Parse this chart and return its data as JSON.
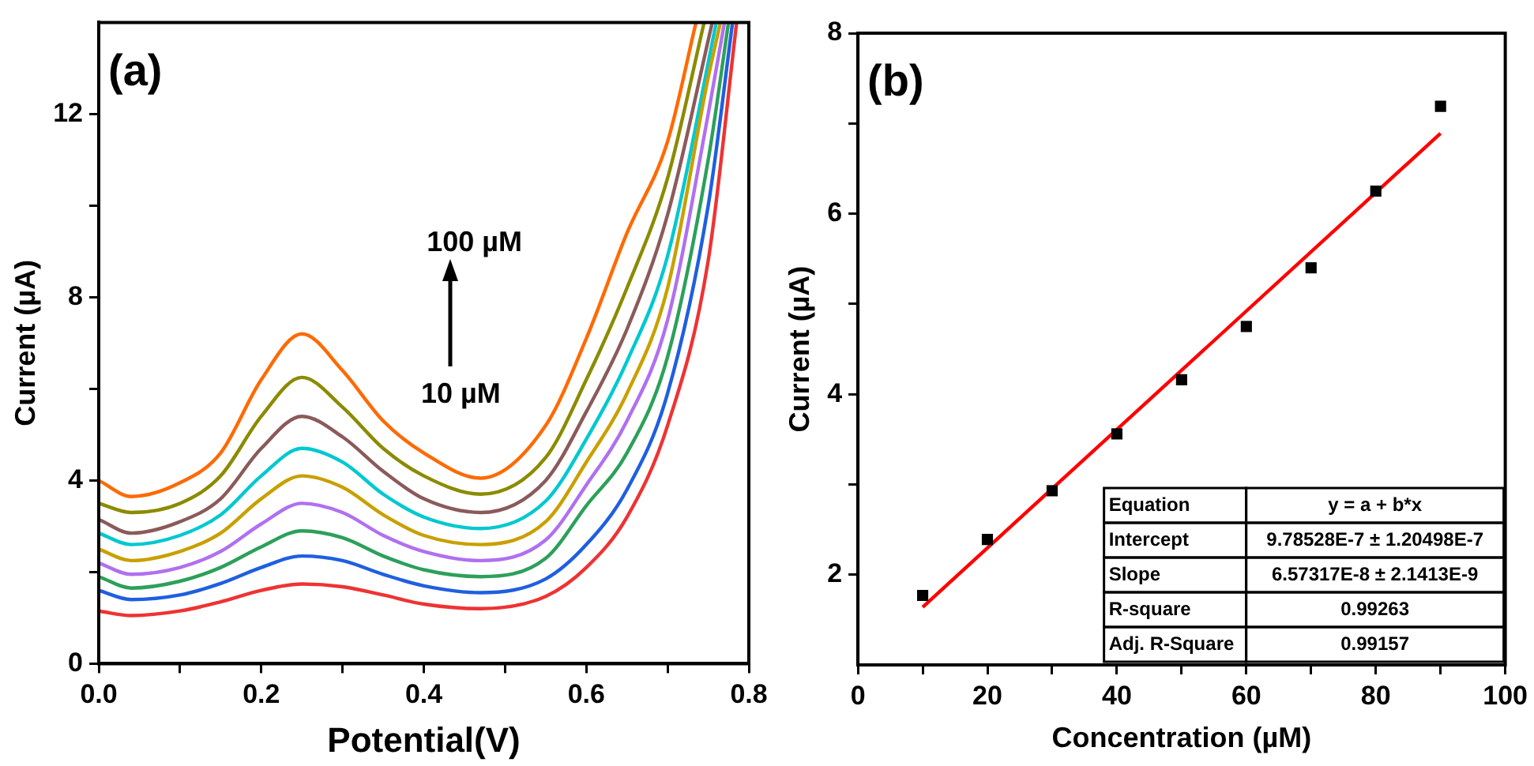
{
  "chart_data": [
    {
      "type": "line",
      "xlabel": "Potential(V)",
      "ylabel": "Current (µA)",
      "xlim": [
        0,
        0.8
      ],
      "ylim": [
        0,
        14
      ],
      "xticks": [
        {
          "value": 0,
          "label": "0.0"
        },
        {
          "value": 0.1,
          "label": null
        },
        {
          "value": 0.2,
          "label": "0.2"
        },
        {
          "value": 0.3,
          "label": null
        },
        {
          "value": 0.4,
          "label": "0.4"
        },
        {
          "value": 0.5,
          "label": null
        },
        {
          "value": 0.6,
          "label": "0.6"
        },
        {
          "value": 0.7,
          "label": null
        },
        {
          "value": 0.8,
          "label": "0.8"
        }
      ],
      "yticks": [
        0,
        {
          "value": 2,
          "label": null
        },
        4,
        {
          "value": 6,
          "label": null
        },
        8,
        {
          "value": 10,
          "label": null
        },
        12
      ],
      "legend": false,
      "annotations": [
        "(a)",
        "100 µM",
        "10 µM"
      ],
      "series": [
        {
          "color": "#ee3333",
          "x": [
            0,
            0.04,
            0.1,
            0.15,
            0.2,
            0.25,
            0.3,
            0.35,
            0.4,
            0.47,
            0.55,
            0.6,
            0.65,
            0.7,
            0.75,
            0.785
          ],
          "values": [
            1.15,
            1.05,
            1.15,
            1.35,
            1.6,
            1.74,
            1.68,
            1.5,
            1.3,
            1.2,
            1.47,
            2.1,
            3.2,
            5.2,
            8.8,
            14
          ]
        },
        {
          "color": "#1f5fe0",
          "x": [
            0,
            0.04,
            0.1,
            0.15,
            0.2,
            0.25,
            0.3,
            0.35,
            0.4,
            0.47,
            0.55,
            0.6,
            0.65,
            0.7,
            0.75,
            0.78
          ],
          "values": [
            1.6,
            1.4,
            1.5,
            1.75,
            2.1,
            2.35,
            2.25,
            1.95,
            1.7,
            1.55,
            1.85,
            2.6,
            3.8,
            5.9,
            10.0,
            14
          ]
        },
        {
          "color": "#2ca05a",
          "x": [
            0,
            0.04,
            0.1,
            0.15,
            0.2,
            0.25,
            0.3,
            0.35,
            0.4,
            0.47,
            0.55,
            0.6,
            0.65,
            0.7,
            0.75,
            0.775
          ],
          "values": [
            1.9,
            1.65,
            1.8,
            2.1,
            2.55,
            2.9,
            2.75,
            2.35,
            2.05,
            1.9,
            2.3,
            3.45,
            4.6,
            6.7,
            11.0,
            14
          ]
        },
        {
          "color": "#b070f0",
          "x": [
            0,
            0.04,
            0.1,
            0.15,
            0.2,
            0.25,
            0.3,
            0.35,
            0.4,
            0.47,
            0.55,
            0.6,
            0.65,
            0.7,
            0.75,
            0.77
          ],
          "values": [
            2.2,
            1.95,
            2.1,
            2.45,
            3.05,
            3.5,
            3.3,
            2.8,
            2.45,
            2.25,
            2.7,
            3.9,
            5.3,
            7.5,
            12.0,
            14
          ]
        },
        {
          "color": "#c8a000",
          "x": [
            0,
            0.04,
            0.1,
            0.15,
            0.2,
            0.25,
            0.3,
            0.35,
            0.4,
            0.47,
            0.55,
            0.6,
            0.65,
            0.7,
            0.75,
            0.765
          ],
          "values": [
            2.5,
            2.25,
            2.45,
            2.85,
            3.6,
            4.1,
            3.85,
            3.25,
            2.8,
            2.6,
            3.1,
            4.4,
            5.9,
            8.2,
            12.8,
            14
          ]
        },
        {
          "color": "#00c8d0",
          "x": [
            0,
            0.04,
            0.1,
            0.15,
            0.2,
            0.25,
            0.3,
            0.35,
            0.4,
            0.47,
            0.55,
            0.6,
            0.65,
            0.7,
            0.76
          ],
          "values": [
            2.85,
            2.6,
            2.8,
            3.25,
            4.1,
            4.7,
            4.4,
            3.7,
            3.2,
            2.95,
            3.55,
            4.9,
            6.6,
            8.9,
            14
          ]
        },
        {
          "color": "#8b5a5a",
          "x": [
            0,
            0.04,
            0.1,
            0.15,
            0.2,
            0.25,
            0.3,
            0.35,
            0.4,
            0.47,
            0.55,
            0.6,
            0.65,
            0.7,
            0.755
          ],
          "values": [
            3.15,
            2.85,
            3.1,
            3.6,
            4.7,
            5.4,
            4.95,
            4.2,
            3.6,
            3.3,
            4.0,
            5.5,
            7.3,
            9.8,
            14
          ]
        },
        {
          "color": "#8b8b00",
          "x": [
            0,
            0.04,
            0.1,
            0.15,
            0.2,
            0.25,
            0.3,
            0.35,
            0.4,
            0.47,
            0.55,
            0.6,
            0.65,
            0.7,
            0.745
          ],
          "values": [
            3.5,
            3.3,
            3.5,
            4.1,
            5.4,
            6.25,
            5.6,
            4.7,
            4.1,
            3.7,
            4.5,
            6.2,
            8.2,
            10.6,
            14
          ]
        },
        {
          "color": "#ff6a00",
          "x": [
            0,
            0.04,
            0.1,
            0.15,
            0.2,
            0.25,
            0.3,
            0.35,
            0.4,
            0.47,
            0.55,
            0.6,
            0.65,
            0.7,
            0.735
          ],
          "values": [
            4.0,
            3.65,
            3.95,
            4.6,
            6.2,
            7.2,
            6.4,
            5.3,
            4.6,
            4.05,
            5.2,
            7.1,
            9.4,
            11.4,
            14
          ]
        }
      ]
    },
    {
      "type": "scatter",
      "xlabel": "Concentration (µM)",
      "ylabel": "Current (µA)",
      "xlim": [
        0,
        100
      ],
      "ylim": [
        1,
        8
      ],
      "xticks": [
        0,
        {
          "value": 10,
          "label": null
        },
        20,
        {
          "value": 30,
          "label": null
        },
        40,
        {
          "value": 50,
          "label": null
        },
        60,
        {
          "value": 70,
          "label": null
        },
        80,
        {
          "value": 90,
          "label": null
        },
        100
      ],
      "yticks": [
        2,
        {
          "value": 3,
          "label": null
        },
        4,
        {
          "value": 5,
          "label": null
        },
        6,
        {
          "value": 7,
          "label": null
        },
        8
      ],
      "legend": false,
      "annotations": [
        "(b)",
        "Equation",
        "y = a + b*x",
        "Intercept",
        "9.78528E-7 ± 1.20498E-7",
        "Slope",
        "6.57317E-8 ± 2.1413E-9",
        "R-square",
        "0.99263",
        "Adj. R-Square",
        "0.99157"
      ],
      "series": [
        {
          "type": "scatter",
          "marker": "square",
          "color": "#000000",
          "x": [
            10,
            20,
            30,
            40,
            50,
            60,
            70,
            80,
            90
          ],
          "values": [
            1.77,
            2.39,
            2.93,
            3.56,
            4.16,
            4.75,
            5.4,
            6.25,
            7.19
          ]
        },
        {
          "type": "line",
          "color": "#ff0000",
          "x": [
            10,
            90
          ],
          "values": [
            1.64,
            6.89
          ]
        }
      ]
    }
  ]
}
